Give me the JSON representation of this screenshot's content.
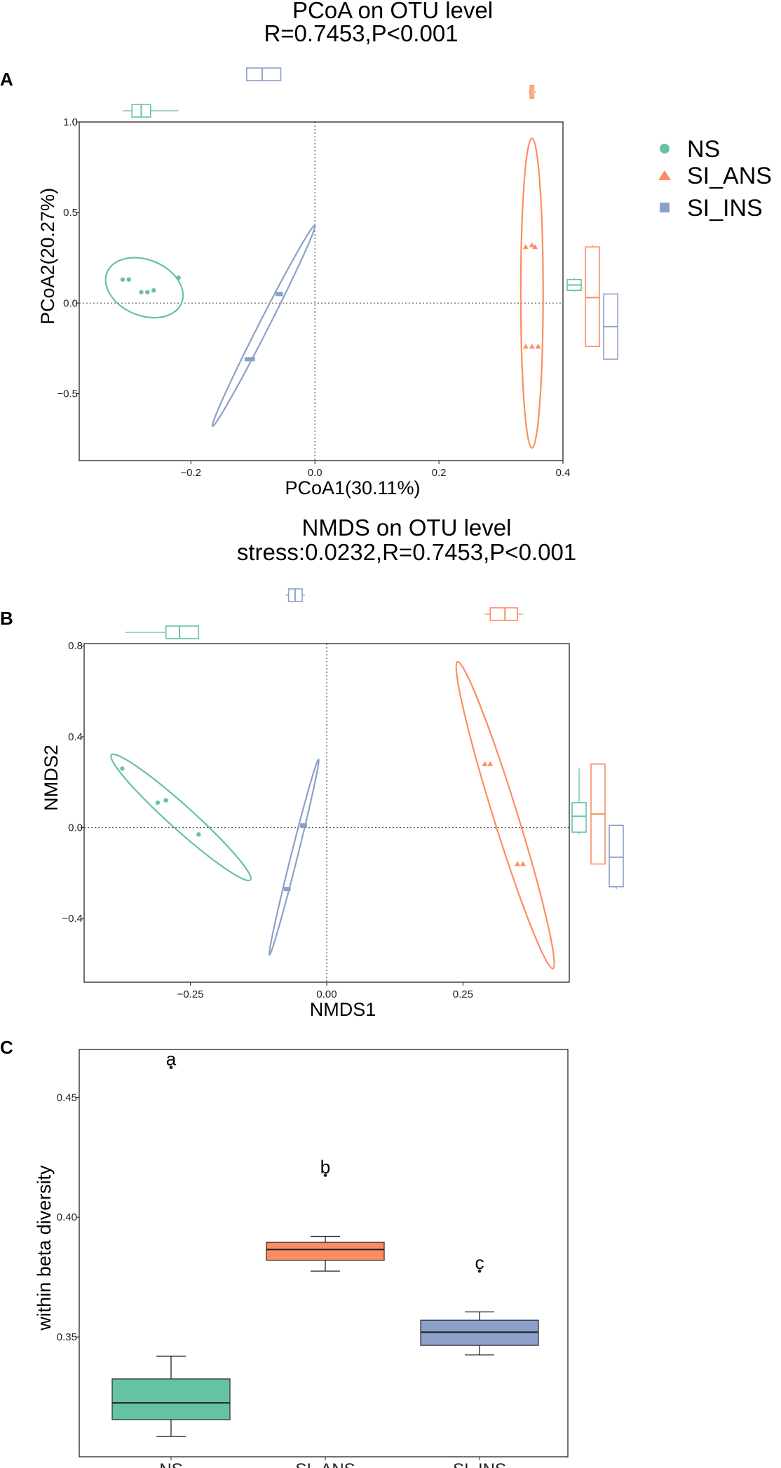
{
  "colors": {
    "NS": "#66c2a5",
    "SI_ANS": "#fc8d62",
    "SI_INS": "#8da0cb"
  },
  "legend": {
    "items": [
      {
        "label": "NS",
        "shape": "circle",
        "color": "#66c2a5"
      },
      {
        "label": "SI_ANS",
        "shape": "triangle",
        "color": "#fc8d62"
      },
      {
        "label": "SI_INS",
        "shape": "square",
        "color": "#8da0cb"
      }
    ]
  },
  "panels": {
    "a": {
      "letter": "A",
      "title_line1": "PCoA on OTU level",
      "title_line2": "R=0.7453,P<0.001"
    },
    "b": {
      "letter": "B",
      "title_line1": "NMDS on OTU level",
      "title_line2": "stress:0.0232,R=0.7453,P<0.001"
    },
    "c": {
      "letter": "C"
    }
  },
  "chart_data": [
    {
      "type": "scatter",
      "title": "PCoA on OTU level",
      "subtitle": "R=0.7453,P<0.001",
      "xlabel": "PCoA1(30.11%)",
      "ylabel": "PCoA2(20.27%)",
      "xlim": [
        -0.38,
        0.4
      ],
      "ylim": [
        -0.87,
        1.0
      ],
      "xticks": [
        -0.2,
        0.0,
        0.2,
        0.4
      ],
      "xtick_labels": [
        "−0.2",
        "0.0",
        "0.2",
        "0.4"
      ],
      "yticks": [
        -0.5,
        0.0,
        0.5,
        1.0
      ],
      "ytick_labels": [
        "−0.5",
        "0.0",
        "0.5",
        "1.0"
      ],
      "reference_lines": {
        "x": 0,
        "y": 0
      },
      "series": [
        {
          "name": "NS",
          "x": [
            -0.31,
            -0.3,
            -0.28,
            -0.27,
            -0.26,
            -0.22
          ],
          "y": [
            0.13,
            0.13,
            0.06,
            0.06,
            0.07,
            0.14
          ]
        },
        {
          "name": "SI_ANS",
          "x": [
            0.34,
            0.35,
            0.355,
            0.34,
            0.35,
            0.36
          ],
          "y": [
            0.31,
            0.32,
            0.31,
            -0.24,
            -0.24,
            -0.24
          ]
        },
        {
          "name": "SI_INS",
          "x": [
            -0.11,
            -0.105,
            -0.1,
            -0.06,
            -0.055
          ],
          "y": [
            -0.31,
            -0.31,
            -0.31,
            0.05,
            0.05
          ]
        }
      ],
      "ellipses": [
        {
          "series": "NS",
          "endpoints": [
            [
              -0.335,
              0.17
            ],
            [
              -0.215,
              0.0
            ]
          ],
          "minor": 0.045
        },
        {
          "series": "SI_ANS",
          "endpoints": [
            [
              0.35,
              0.91
            ],
            [
              0.35,
              -0.8
            ]
          ],
          "minor": 0.018
        },
        {
          "series": "SI_INS",
          "endpoints": [
            [
              -0.165,
              -0.68
            ],
            [
              0.0,
              0.43
            ]
          ],
          "minor": 0.008
        }
      ],
      "marginal_boxplots": {
        "x": [
          {
            "series": "NS",
            "whisker": [
              -0.31,
              -0.22
            ],
            "q1": -0.295,
            "median": -0.28,
            "q3": -0.265
          },
          {
            "series": "SI_ANS",
            "whisker": [
              0.345,
              0.357
            ],
            "q1": 0.347,
            "median": 0.35,
            "q3": 0.353
          },
          {
            "series": "SI_INS",
            "whisker": [
              -0.11,
              -0.055
            ],
            "q1": -0.11,
            "median": -0.085,
            "q3": -0.055
          }
        ],
        "y": [
          {
            "series": "NS",
            "whisker": [
              0.06,
              0.14
            ],
            "q1": 0.07,
            "median": 0.1,
            "q3": 0.13
          },
          {
            "series": "SI_ANS",
            "whisker": [
              -0.24,
              0.32
            ],
            "q1": -0.24,
            "median": 0.03,
            "q3": 0.31
          },
          {
            "series": "SI_INS",
            "whisker": [
              -0.31,
              0.05
            ],
            "q1": -0.31,
            "median": -0.13,
            "q3": 0.05
          }
        ]
      }
    },
    {
      "type": "scatter",
      "title": "NMDS on OTU level",
      "subtitle": "stress:0.0232,R=0.7453,P<0.001",
      "xlabel": "NMDS1",
      "ylabel": "NMDS2",
      "xlim": [
        -0.445,
        0.445
      ],
      "ylim": [
        -0.68,
        0.81
      ],
      "xticks": [
        -0.25,
        0.0,
        0.25
      ],
      "xtick_labels": [
        "−0.25",
        "0.00",
        "0.25"
      ],
      "yticks": [
        -0.4,
        0.0,
        0.4,
        0.8
      ],
      "ytick_labels": [
        "−0.4",
        "0.0",
        "0.4",
        "0.8"
      ],
      "reference_lines": {
        "x": 0,
        "y": 0
      },
      "series": [
        {
          "name": "NS",
          "x": [
            -0.375,
            -0.31,
            -0.295,
            -0.235
          ],
          "y": [
            0.26,
            0.11,
            0.12,
            -0.03
          ]
        },
        {
          "name": "SI_ANS",
          "x": [
            0.29,
            0.3,
            0.35,
            0.36
          ],
          "y": [
            0.28,
            0.28,
            -0.16,
            -0.16
          ]
        },
        {
          "name": "SI_INS",
          "x": [
            -0.075,
            -0.07,
            -0.045,
            -0.04
          ],
          "y": [
            -0.27,
            -0.27,
            0.01,
            0.01
          ]
        }
      ],
      "ellipses": [
        {
          "series": "NS",
          "endpoints": [
            [
              -0.395,
              0.32
            ],
            [
              -0.14,
              -0.23
            ]
          ],
          "minor": 0.022
        },
        {
          "series": "SI_ANS",
          "endpoints": [
            [
              0.24,
              0.73
            ],
            [
              0.415,
              -0.62
            ]
          ],
          "minor": 0.022
        },
        {
          "series": "SI_INS",
          "endpoints": [
            [
              -0.105,
              -0.56
            ],
            [
              -0.015,
              0.3
            ]
          ],
          "minor": 0.006
        }
      ],
      "marginal_boxplots": {
        "x": [
          {
            "series": "NS",
            "whisker": [
              -0.37,
              -0.235
            ],
            "q1": -0.295,
            "median": -0.27,
            "q3": -0.235
          },
          {
            "series": "SI_ANS",
            "whisker": [
              0.29,
              0.36
            ],
            "q1": 0.3,
            "median": 0.327,
            "q3": 0.35
          },
          {
            "series": "SI_INS",
            "whisker": [
              -0.075,
              -0.04
            ],
            "q1": -0.07,
            "median": -0.058,
            "q3": -0.045
          }
        ],
        "y": [
          {
            "series": "NS",
            "whisker": [
              -0.03,
              0.26
            ],
            "q1": -0.02,
            "median": 0.05,
            "q3": 0.11
          },
          {
            "series": "SI_ANS",
            "whisker": [
              -0.16,
              0.28
            ],
            "q1": -0.16,
            "median": 0.06,
            "q3": 0.28
          },
          {
            "series": "SI_INS",
            "whisker": [
              -0.27,
              0.01
            ],
            "q1": -0.26,
            "median": -0.13,
            "q3": 0.01
          }
        ]
      }
    },
    {
      "type": "box",
      "xlabel": "",
      "ylabel": "within beta diversity",
      "ylim": [
        0.3,
        0.47
      ],
      "yticks": [
        0.35,
        0.4,
        0.45
      ],
      "ytick_labels": [
        "0.35",
        "0.40",
        "0.45"
      ],
      "categories": [
        "NS",
        "SI_ANS",
        "SI_INS"
      ],
      "boxes": [
        {
          "name": "NS",
          "whisker_low": 0.3085,
          "q1": 0.3155,
          "median": 0.3225,
          "q3": 0.3325,
          "whisker_high": 0.342,
          "outliers": [
            0.4625
          ],
          "letter": "a"
        },
        {
          "name": "SI_ANS",
          "whisker_low": 0.3775,
          "q1": 0.382,
          "median": 0.3865,
          "q3": 0.3895,
          "whisker_high": 0.392,
          "outliers": [
            0.4175
          ],
          "letter": "b"
        },
        {
          "name": "SI_INS",
          "whisker_low": 0.3425,
          "q1": 0.3465,
          "median": 0.352,
          "q3": 0.357,
          "whisker_high": 0.3605,
          "outliers": [
            0.3775
          ],
          "letter": "c"
        }
      ]
    }
  ]
}
